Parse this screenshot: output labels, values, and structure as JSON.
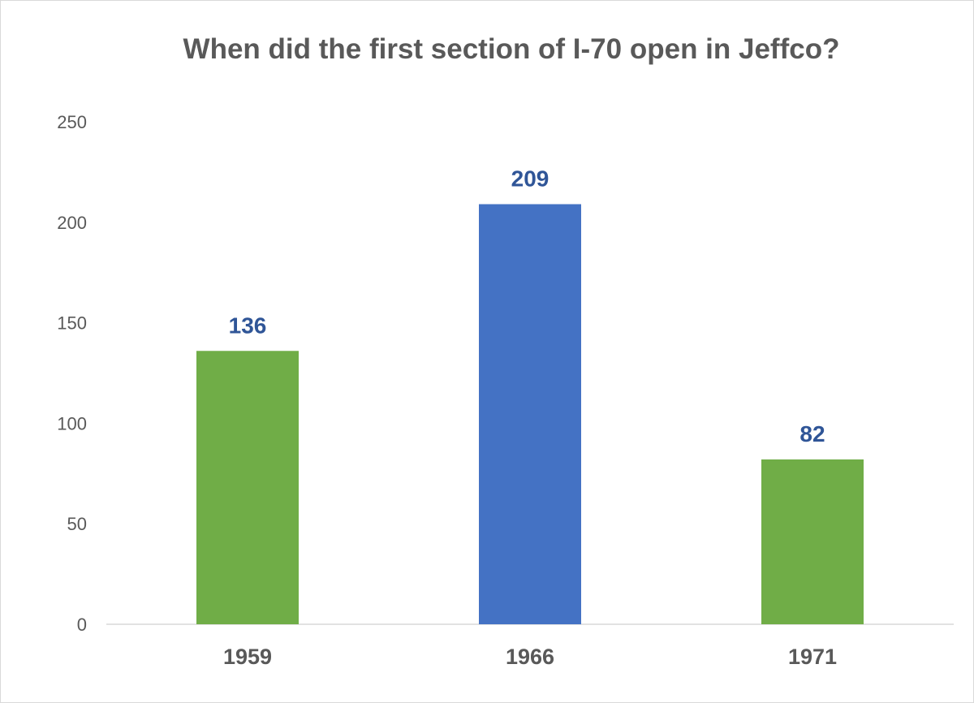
{
  "chart_data": {
    "type": "bar",
    "title": "When did the first section of I-70 open in Jeffco?",
    "xlabel": "",
    "ylabel": "",
    "categories": [
      "1959",
      "1966",
      "1971"
    ],
    "values": [
      136,
      209,
      82
    ],
    "data_labels": [
      "136",
      "209",
      "82"
    ],
    "ylim": [
      0,
      250
    ],
    "yticks": [
      "0",
      "50",
      "100",
      "150",
      "200",
      "250"
    ],
    "grid": false,
    "legend": "none",
    "bar_colors": [
      "#70ad47",
      "#4472c4",
      "#70ad47"
    ],
    "data_label_color": "#2f5597",
    "axis_color": "#d9d9d9",
    "text_color": "#595959"
  }
}
